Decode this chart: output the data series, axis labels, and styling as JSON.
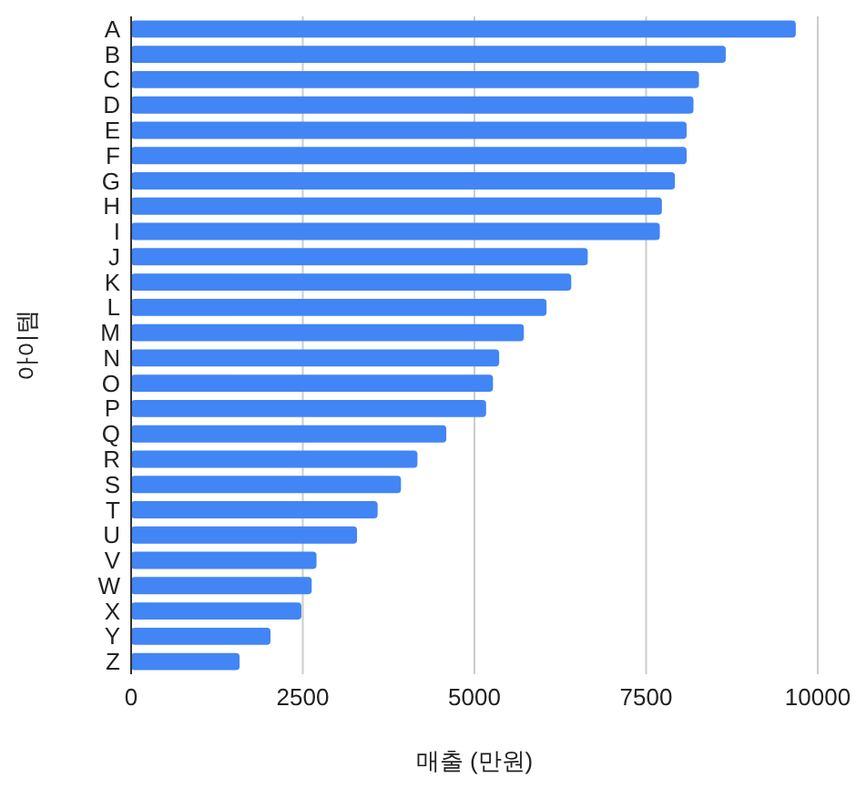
{
  "chart_data": {
    "type": "bar",
    "orientation": "horizontal",
    "xlabel": "매출 (만원)",
    "ylabel": "아이템",
    "categories": [
      "A",
      "B",
      "C",
      "D",
      "E",
      "F",
      "G",
      "H",
      "I",
      "J",
      "K",
      "L",
      "M",
      "N",
      "O",
      "P",
      "Q",
      "R",
      "S",
      "T",
      "U",
      "V",
      "W",
      "X",
      "Y",
      "Z"
    ],
    "values": [
      9680,
      8660,
      8270,
      8190,
      8090,
      8090,
      7920,
      7730,
      7700,
      6650,
      6410,
      6050,
      5720,
      5360,
      5270,
      5170,
      4590,
      4170,
      3930,
      3590,
      3290,
      2700,
      2630,
      2480,
      2030,
      1580
    ],
    "color": "#4285f4",
    "xlim": [
      0,
      10000
    ],
    "xticks": [
      0,
      2500,
      5000,
      7500,
      10000
    ],
    "grid": "x"
  }
}
